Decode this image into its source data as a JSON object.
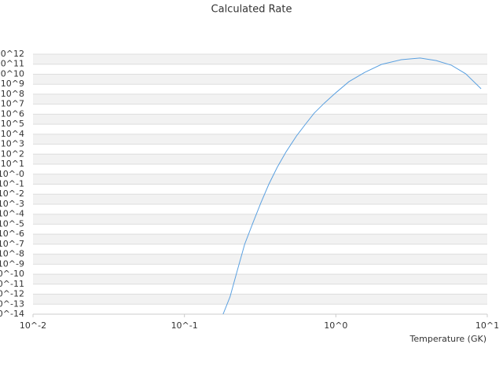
{
  "chart_data": {
    "type": "line",
    "title": "Calculated Rate",
    "xlabel": "Temperature (GK)",
    "x": [
      0.18,
      0.2,
      0.223,
      0.25,
      0.284,
      0.32,
      0.36,
      0.41,
      0.47,
      0.55,
      0.63,
      0.72,
      0.84,
      1.0,
      1.22,
      1.55,
      2.0,
      2.7,
      3.6,
      4.6,
      5.8,
      7.2,
      9.1
    ],
    "series": [
      {
        "color": "#5aa0e0",
        "values": [
          1e-14,
          5.4e-13,
          2.1e-10,
          1e-07,
          1.5e-05,
          0.0014,
          0.091,
          4.9,
          180,
          6800,
          100000,
          1300000,
          13000000,
          140000000,
          1800000000,
          15000000000,
          95000000000,
          280000000000,
          410000000000,
          230000000000,
          79000000000,
          11000000000,
          350000000
        ]
      }
    ],
    "xlog": true,
    "ylog": true,
    "grid": true,
    "xlim": [
      0.01,
      10
    ],
    "xticks": [
      {
        "value": 0.01,
        "label": "10^-2"
      },
      {
        "value": 0.1,
        "label": "10^-1"
      },
      {
        "value": 1,
        "label": "10^0"
      },
      {
        "value": 10,
        "label": "10^1"
      }
    ],
    "ylim": [
      1e-14,
      1000000000000.0
    ],
    "yticks": [
      {
        "value": 1000000000000.0,
        "label": "10^12"
      },
      {
        "value": 100000000000.0,
        "label": "10^11"
      },
      {
        "value": 10000000000.0,
        "label": "10^10"
      },
      {
        "value": 1000000000.0,
        "label": "10^9"
      },
      {
        "value": 100000000.0,
        "label": "10^8"
      },
      {
        "value": 10000000.0,
        "label": "10^7"
      },
      {
        "value": 1000000.0,
        "label": "10^6"
      },
      {
        "value": 100000.0,
        "label": "10^5"
      },
      {
        "value": 10000.0,
        "label": "10^4"
      },
      {
        "value": 1000.0,
        "label": "10^3"
      },
      {
        "value": 100.0,
        "label": "10^2"
      },
      {
        "value": 10,
        "label": "10^1"
      },
      {
        "value": 1,
        "label": "10^-0"
      },
      {
        "value": 0.1,
        "label": "10^-1"
      },
      {
        "value": 0.01,
        "label": "10^-2"
      },
      {
        "value": 0.001,
        "label": "10^-3"
      },
      {
        "value": 0.0001,
        "label": "10^-4"
      },
      {
        "value": 1e-05,
        "label": "10^-5"
      },
      {
        "value": 1e-06,
        "label": "10^-6"
      },
      {
        "value": 1e-07,
        "label": "10^-7"
      },
      {
        "value": 1e-08,
        "label": "10^-8"
      },
      {
        "value": 1e-09,
        "label": "10^-9"
      },
      {
        "value": 1e-10,
        "label": "10^-10"
      },
      {
        "value": 1e-11,
        "label": "10^-11"
      },
      {
        "value": 1e-12,
        "label": "10^-12"
      },
      {
        "value": 1e-13,
        "label": "10^-13"
      },
      {
        "value": 1e-14,
        "label": "10^-14"
      }
    ]
  }
}
